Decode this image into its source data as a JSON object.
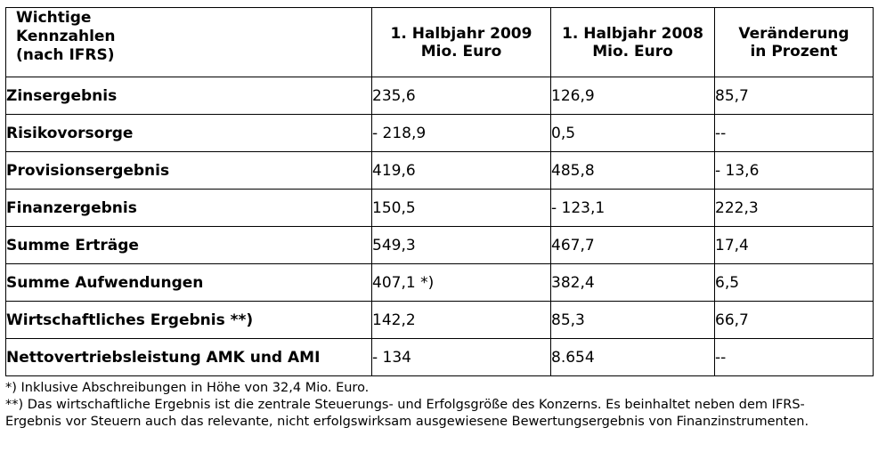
{
  "header": {
    "label_lines": [
      "Wichtige",
      "Kennzahlen",
      "(nach IFRS)"
    ],
    "col_2009_lines": [
      "1. Halbjahr 2009",
      "Mio. Euro"
    ],
    "col_2008_lines": [
      "1. Halbjahr 2008",
      "Mio. Euro"
    ],
    "col_change_lines": [
      "Veränderung",
      "in Prozent"
    ]
  },
  "rows": [
    {
      "label": "Zinsergebnis",
      "v2009": "235,6",
      "v2008": "126,9",
      "change": "85,7"
    },
    {
      "label": "Risikovorsorge",
      "v2009": "- 218,9",
      "v2008": "0,5",
      "change": "--"
    },
    {
      "label": "Provisionsergebnis",
      "v2009": "419,6",
      "v2008": "485,8",
      "change": "- 13,6"
    },
    {
      "label": "Finanzergebnis",
      "v2009": "150,5",
      "v2008": "- 123,1",
      "change": "222,3"
    },
    {
      "label": "Summe Erträge",
      "v2009": "549,3",
      "v2008": "467,7",
      "change": "17,4"
    },
    {
      "label": "Summe Aufwendungen",
      "v2009": "407,1 *)",
      "v2008": "382,4",
      "change": "6,5"
    },
    {
      "label": "Wirtschaftliches Ergebnis **)",
      "v2009": "142,2",
      "v2008": "85,3",
      "change": "66,7"
    },
    {
      "label": "Nettovertriebsleistung AMK und AMI",
      "v2009": "- 134",
      "v2008": "8.654",
      "change": "--"
    }
  ],
  "footnotes": {
    "note1": "*) Inklusive Abschreibungen in Höhe von 32,4 Mio. Euro.",
    "note2": "**) Das wirtschaftliche Ergebnis ist die zentrale Steuerungs- und Erfolgsgröße des Konzerns. Es beinhaltet neben dem IFRS-Ergebnis vor Steuern auch das relevante, nicht erfolgswirksam ausgewiesene Bewertungsergebnis von Finanzinstrumenten."
  }
}
